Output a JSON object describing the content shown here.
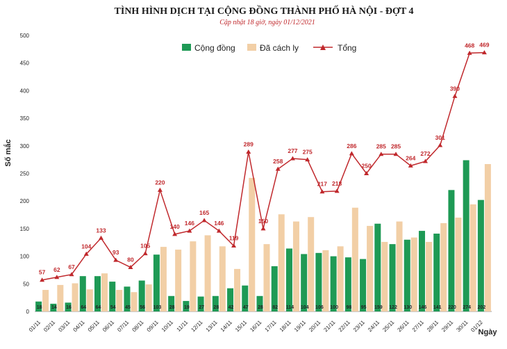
{
  "chart_data": {
    "type": "bar",
    "title": "TÌNH HÌNH DỊCH TẠI CỘNG ĐỒNG THÀNH PHỐ HÀ NỘI - ĐỢT 4",
    "subtitle": "Cập nhật 18 giờ, ngày 01/12/2021",
    "ylabel": "Số mắc",
    "xlabel": "Ngày",
    "ylim": [
      0,
      500
    ],
    "yticks": [
      0,
      50,
      100,
      150,
      200,
      250,
      300,
      350,
      400,
      450,
      500
    ],
    "grid": false,
    "legend_position": "top-center",
    "categories": [
      "01/11",
      "02/11",
      "03/11",
      "04/11",
      "05/11",
      "06/11",
      "07/11",
      "08/11",
      "09/11",
      "10/11",
      "11/11",
      "12/11",
      "13/11",
      "14/11",
      "15/11",
      "16/11",
      "17/11",
      "18/11",
      "19/11",
      "20/11",
      "21/11",
      "22/11",
      "23/11",
      "24/11",
      "25/11",
      "26/11",
      "27/11",
      "28/11",
      "29/11",
      "30/11",
      "01/12"
    ],
    "series": [
      {
        "name": "Cộng đồng",
        "kind": "bar",
        "color": "#1e9a55",
        "values": [
          18,
          14,
          16,
          64,
          64,
          54,
          45,
          56,
          103,
          28,
          19,
          27,
          28,
          42,
          47,
          28,
          82,
          114,
          104,
          106,
          100,
          98,
          95,
          159,
          122,
          130,
          146,
          141,
          220,
          274,
          202
        ]
      },
      {
        "name": "Đã cách ly",
        "kind": "bar",
        "color": "#f2cfa6",
        "values": [
          39,
          48,
          51,
          40,
          69,
          39,
          35,
          49,
          117,
          112,
          127,
          138,
          118,
          77,
          242,
          122,
          176,
          163,
          171,
          111,
          118,
          188,
          155,
          126,
          163,
          134,
          126,
          160,
          170,
          194,
          267
        ]
      },
      {
        "name": "Tổng",
        "kind": "line",
        "color": "#c0282c",
        "values": [
          57,
          62,
          67,
          104,
          133,
          93,
          80,
          105,
          220,
          140,
          146,
          165,
          146,
          119,
          289,
          150,
          258,
          277,
          275,
          217,
          218,
          286,
          250,
          285,
          285,
          264,
          272,
          301,
          390,
          468,
          469
        ]
      }
    ]
  }
}
